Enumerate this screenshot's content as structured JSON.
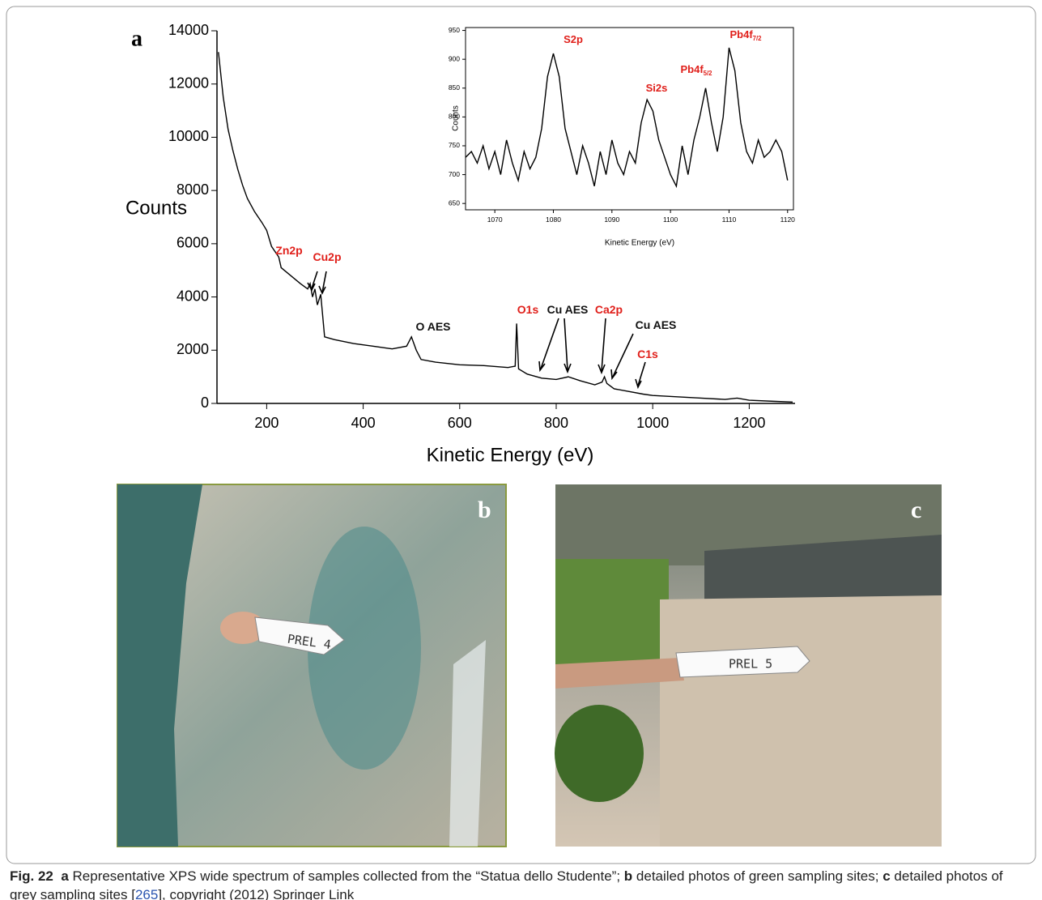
{
  "chart_data": [
    {
      "type": "line",
      "panel": "a",
      "xlabel": "Kinetic Energy (eV)",
      "ylabel": "Counts",
      "xlim": [
        97,
        1295
      ],
      "ylim": [
        0,
        14000
      ],
      "xticks": [
        200,
        400,
        600,
        800,
        1000,
        1200
      ],
      "yticks": [
        0,
        2000,
        4000,
        6000,
        8000,
        10000,
        12000,
        14000
      ],
      "grid": false,
      "series": [
        {
          "color": "#000000",
          "x": [
            100,
            110,
            120,
            130,
            140,
            150,
            160,
            175,
            190,
            200,
            210,
            225,
            230,
            250,
            270,
            285,
            290,
            295,
            300,
            305,
            312,
            315,
            320,
            340,
            380,
            420,
            460,
            490,
            500,
            510,
            520,
            550,
            600,
            650,
            700,
            715,
            718,
            722,
            740,
            770,
            800,
            825,
            850,
            880,
            895,
            900,
            905,
            920,
            950,
            980,
            1000,
            1050,
            1100,
            1150,
            1175,
            1200,
            1250,
            1290
          ],
          "values": [
            13200,
            11500,
            10300,
            9500,
            8800,
            8200,
            7700,
            7200,
            6800,
            6500,
            5900,
            5500,
            5100,
            4800,
            4500,
            4300,
            4500,
            4000,
            4300,
            3700,
            4100,
            3500,
            2500,
            2400,
            2250,
            2150,
            2050,
            2150,
            2500,
            2000,
            1650,
            1550,
            1450,
            1420,
            1350,
            1400,
            3000,
            1300,
            1100,
            950,
            900,
            1000,
            850,
            700,
            800,
            1000,
            750,
            550,
            450,
            350,
            300,
            250,
            200,
            150,
            200,
            120,
            80,
            50
          ]
        }
      ],
      "annotations": [
        {
          "text": "Zn2p",
          "color": "#e0201b"
        },
        {
          "text": "Cu2p",
          "color": "#e0201b"
        },
        {
          "text": "O AES",
          "color": "#111111"
        },
        {
          "text": "O1s",
          "color": "#e0201b"
        },
        {
          "text": "Cu AES",
          "color": "#111111"
        },
        {
          "text": "Ca2p",
          "color": "#e0201b"
        },
        {
          "text": "Cu AES",
          "color": "#111111"
        },
        {
          "text": "C1s",
          "color": "#e0201b"
        }
      ]
    },
    {
      "type": "line",
      "xlabel": "Kinetic Energy (eV)",
      "ylabel": "Counts",
      "xlim": [
        1065,
        1121
      ],
      "ylim": [
        639,
        955
      ],
      "xticks": [
        1070,
        1080,
        1090,
        1100,
        1110,
        1120
      ],
      "yticks": [
        650,
        700,
        750,
        800,
        850,
        900,
        950
      ],
      "grid": false,
      "series": [
        {
          "color": "#000000",
          "x": [
            1065,
            1066,
            1067,
            1068,
            1069,
            1070,
            1071,
            1072,
            1073,
            1074,
            1075,
            1076,
            1077,
            1078,
            1079,
            1080,
            1081,
            1082,
            1083,
            1084,
            1085,
            1086,
            1087,
            1088,
            1089,
            1090,
            1091,
            1092,
            1093,
            1094,
            1095,
            1096,
            1097,
            1098,
            1099,
            1100,
            1101,
            1102,
            1103,
            1104,
            1105,
            1106,
            1107,
            1108,
            1109,
            1110,
            1111,
            1112,
            1113,
            1114,
            1115,
            1116,
            1117,
            1118,
            1119,
            1120
          ],
          "values": [
            730,
            740,
            720,
            750,
            710,
            740,
            700,
            760,
            720,
            690,
            740,
            710,
            730,
            780,
            870,
            910,
            870,
            780,
            740,
            700,
            750,
            720,
            680,
            740,
            700,
            760,
            720,
            700,
            740,
            720,
            790,
            830,
            810,
            760,
            730,
            700,
            680,
            750,
            700,
            760,
            800,
            850,
            790,
            740,
            800,
            920,
            880,
            790,
            740,
            720,
            760,
            730,
            740,
            760,
            740,
            690
          ]
        }
      ],
      "annotations": [
        {
          "text": "S2p",
          "color": "#e0201b"
        },
        {
          "text": "Si2s",
          "color": "#e0201b"
        },
        {
          "text": "Pb4f",
          "sub": "5/2",
          "color": "#e0201b"
        },
        {
          "text": "Pb4f",
          "sub": "7/2",
          "color": "#e0201b"
        }
      ]
    }
  ],
  "photos": [
    {
      "label": "b",
      "tag": "PREL 4"
    },
    {
      "label": "c",
      "tag": "PREL 5"
    }
  ],
  "caption": {
    "label": "Fig. 22",
    "parts": [
      "a",
      " Representative XPS wide spectrum of samples collected from the “Statua dello Studente”; ",
      "b",
      " detailed photos of green sampling sites; ",
      "c",
      " detailed photos of grey sampling sites [",
      "265",
      "], copyright (2012) Springer Link"
    ]
  }
}
